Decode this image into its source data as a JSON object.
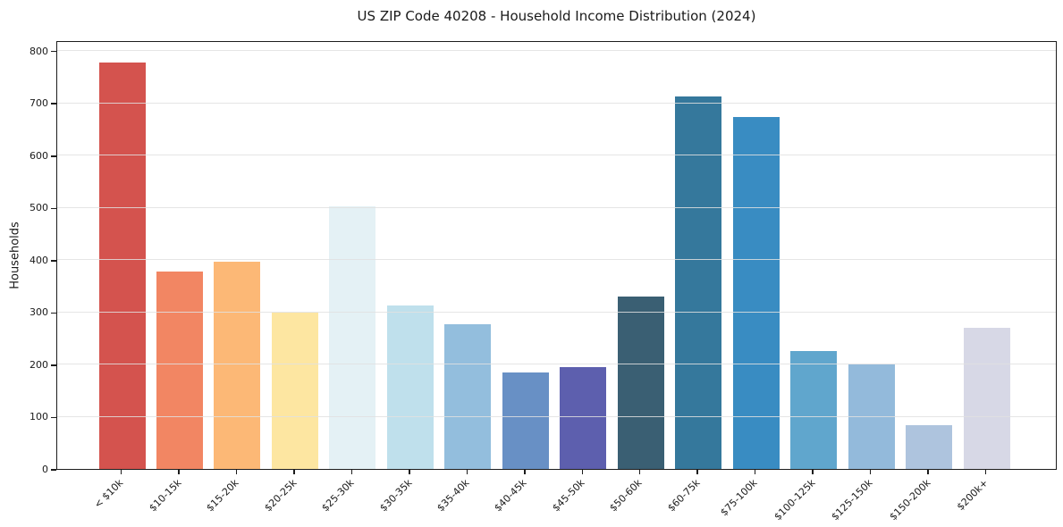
{
  "chart_data": {
    "type": "bar",
    "title": "US ZIP Code 40208 - Household Income Distribution (2024)",
    "xlabel": "",
    "ylabel": "Households",
    "categories": [
      "< $10k",
      "$10-15k",
      "$15-20k",
      "$20-25k",
      "$25-30k",
      "$30-35k",
      "$35-40k",
      "$40-45k",
      "$45-50k",
      "$50-60k",
      "$60-75k",
      "$75-100k",
      "$100-125k",
      "$125-150k",
      "$150-200k",
      "$200k+"
    ],
    "values": [
      778,
      378,
      397,
      299,
      503,
      312,
      277,
      185,
      194,
      330,
      712,
      673,
      225,
      200,
      83,
      270
    ],
    "bar_colors": [
      "#d4534e",
      "#f28663",
      "#fcb876",
      "#fde6a1",
      "#e4f1f5",
      "#bfe0ec",
      "#93bedd",
      "#6890c5",
      "#5d5fae",
      "#3a5f73",
      "#35789c",
      "#398cc2",
      "#60a6cd",
      "#93badb",
      "#aec4de",
      "#d7d8e6"
    ],
    "ylim": [
      0,
      820
    ],
    "yticks": [
      0,
      100,
      200,
      300,
      400,
      500,
      600,
      700,
      800
    ],
    "grid": "horizontal-on-top",
    "legend": "none",
    "styles": {
      "grid_color": "rgba(225,225,225,0.85)",
      "spine_color": "#1c1c1c",
      "text_color": "#1a1a1a",
      "background": "#ffffff"
    }
  }
}
